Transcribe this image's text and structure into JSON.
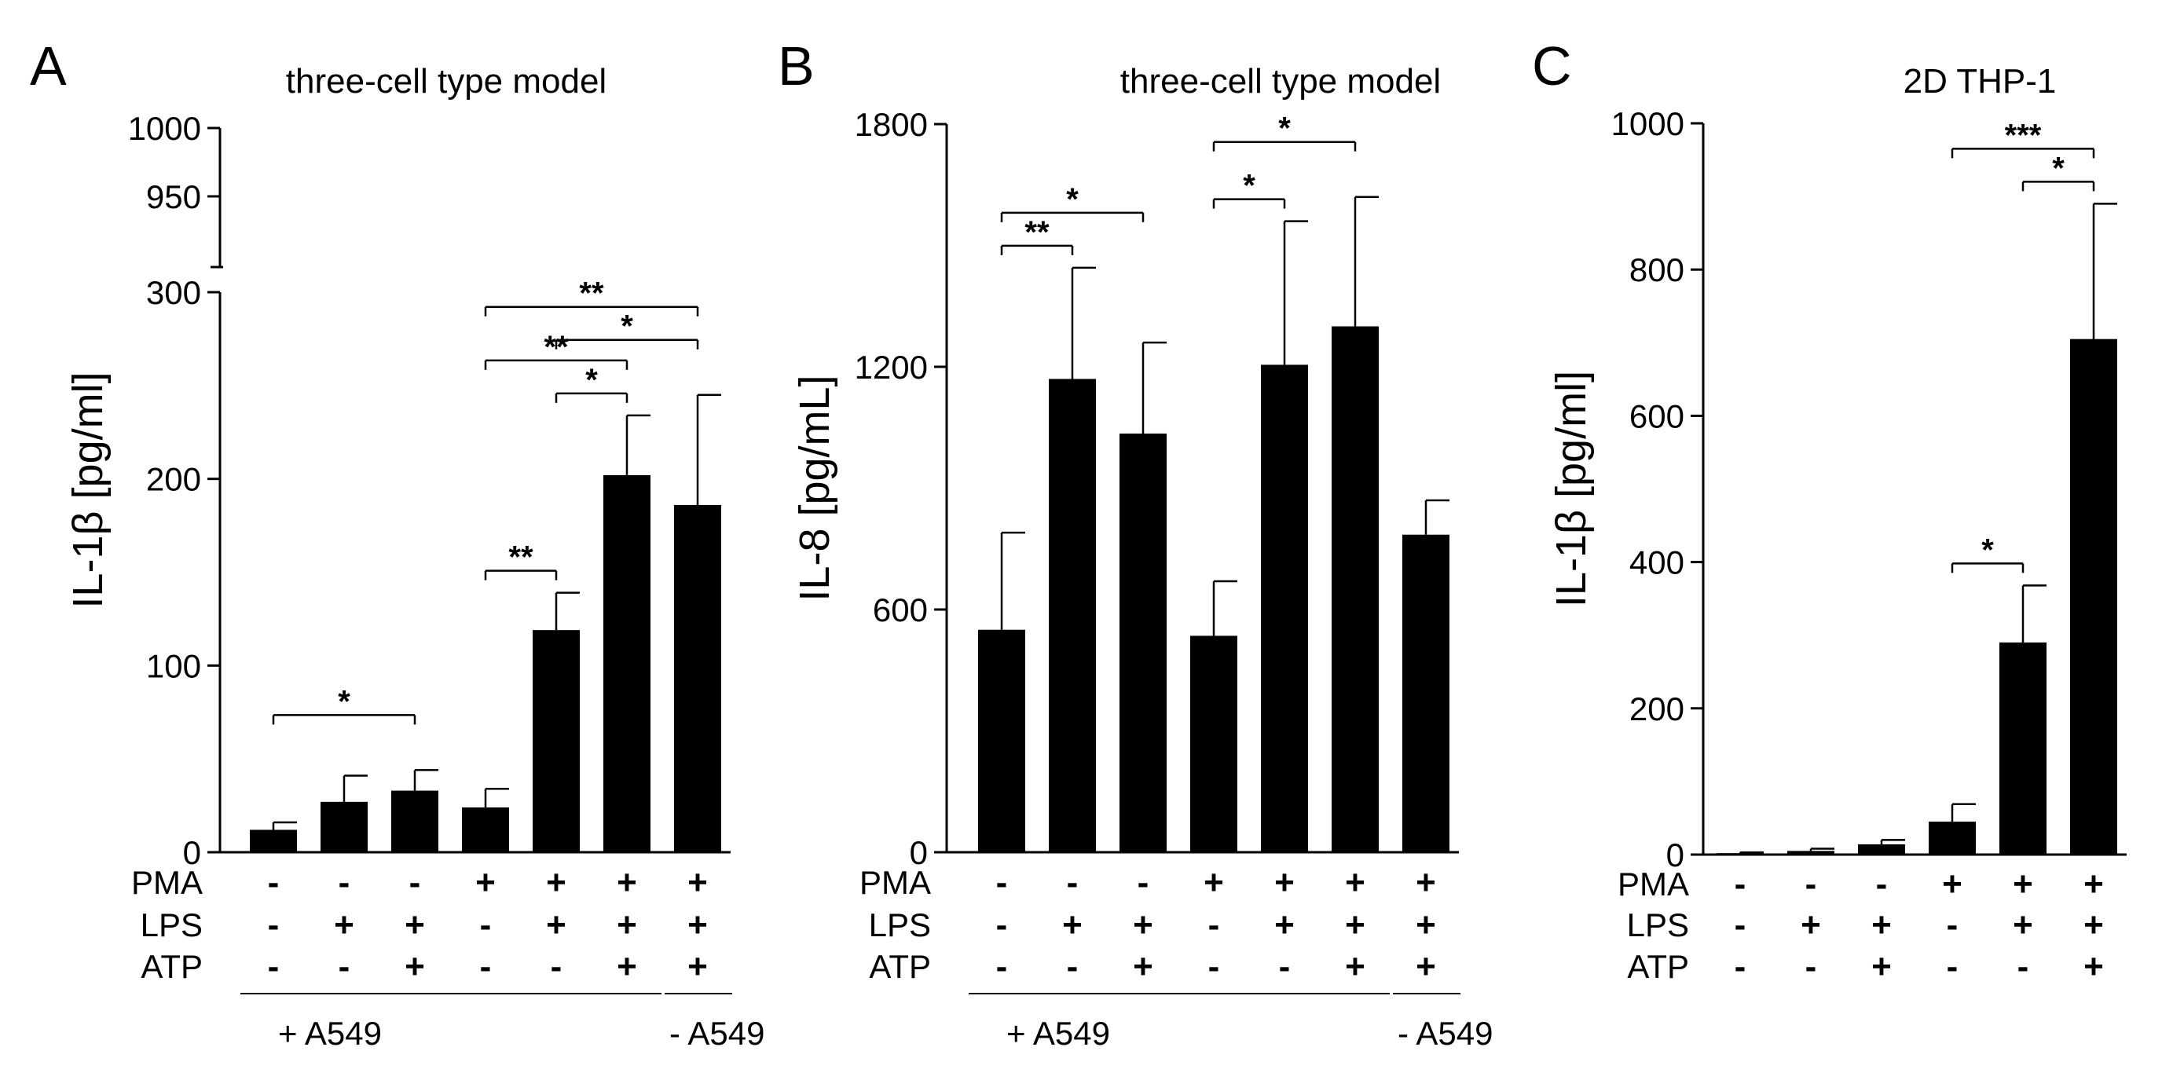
{
  "chart_data": [
    {
      "type": "bar",
      "panel": "A",
      "title": "three-cell type model",
      "ylabel": "IL-1β [pg/ml]",
      "ylim": [
        0,
        300
      ],
      "broken_axis": {
        "upper_ticks": [
          "950",
          "1000"
        ],
        "upper_range": [
          900,
          1000
        ]
      },
      "yticks": [
        0,
        100,
        200,
        300
      ],
      "values": [
        12,
        27,
        33,
        24,
        119,
        202,
        186
      ],
      "errors": [
        4,
        14,
        11,
        10,
        20,
        32,
        59
      ],
      "treatments": {
        "PMA": [
          "-",
          "-",
          "-",
          "+",
          "+",
          "+",
          "+"
        ],
        "LPS": [
          "-",
          "+",
          "+",
          "-",
          "+",
          "+",
          "+"
        ],
        "ATP": [
          "-",
          "-",
          "+",
          "-",
          "-",
          "+",
          "+"
        ]
      },
      "groups": [
        {
          "label": "+ A549",
          "bars": [
            0,
            5
          ]
        },
        {
          "label": "- A549",
          "bars": [
            6,
            6
          ]
        }
      ],
      "significance": [
        {
          "from": 0,
          "to": 2,
          "stars": "*"
        },
        {
          "from": 3,
          "to": 4,
          "stars": "**"
        },
        {
          "from": 3,
          "to": 5,
          "stars": "**"
        },
        {
          "from": 4,
          "to": 5,
          "stars": "*"
        },
        {
          "from": 4,
          "to": 6,
          "stars": "*"
        },
        {
          "from": 3,
          "to": 6,
          "stars": "**"
        }
      ]
    },
    {
      "type": "bar",
      "panel": "B",
      "title": "three-cell type model",
      "ylabel": "IL-8 [pg/mL]",
      "ylim": [
        0,
        1800
      ],
      "yticks": [
        0,
        600,
        1200,
        1800
      ],
      "values": [
        550,
        1170,
        1035,
        535,
        1205,
        1300,
        785
      ],
      "errors": [
        240,
        275,
        225,
        135,
        355,
        320,
        85
      ],
      "treatments": {
        "PMA": [
          "-",
          "-",
          "-",
          "+",
          "+",
          "+",
          "+"
        ],
        "LPS": [
          "-",
          "+",
          "+",
          "-",
          "+",
          "+",
          "+"
        ],
        "ATP": [
          "-",
          "-",
          "+",
          "-",
          "-",
          "+",
          "+"
        ]
      },
      "groups": [
        {
          "label": "+ A549",
          "bars": [
            0,
            5
          ]
        },
        {
          "label": "- A549",
          "bars": [
            6,
            6
          ]
        }
      ],
      "significance": [
        {
          "from": 0,
          "to": 1,
          "stars": "**"
        },
        {
          "from": 0,
          "to": 2,
          "stars": "*"
        },
        {
          "from": 3,
          "to": 4,
          "stars": "*"
        },
        {
          "from": 3,
          "to": 5,
          "stars": "*"
        }
      ]
    },
    {
      "type": "bar",
      "panel": "C",
      "title": "2D THP-1",
      "ylabel": "IL-1β [pg/ml]",
      "ylim": [
        0,
        1000
      ],
      "yticks": [
        0,
        200,
        400,
        600,
        800,
        1000
      ],
      "values": [
        2,
        5,
        14,
        45,
        290,
        705
      ],
      "errors": [
        1,
        3,
        6,
        24,
        78,
        185
      ],
      "treatments": {
        "PMA": [
          "-",
          "-",
          "-",
          "+",
          "+",
          "+"
        ],
        "LPS": [
          "-",
          "+",
          "+",
          "-",
          "+",
          "+"
        ],
        "ATP": [
          "-",
          "-",
          "+",
          "-",
          "-",
          "+"
        ]
      },
      "groups": [],
      "significance": [
        {
          "from": 3,
          "to": 4,
          "stars": "*"
        },
        {
          "from": 3,
          "to": 5,
          "stars": "***"
        },
        {
          "from": 4,
          "to": 5,
          "stars": "*"
        }
      ]
    }
  ]
}
